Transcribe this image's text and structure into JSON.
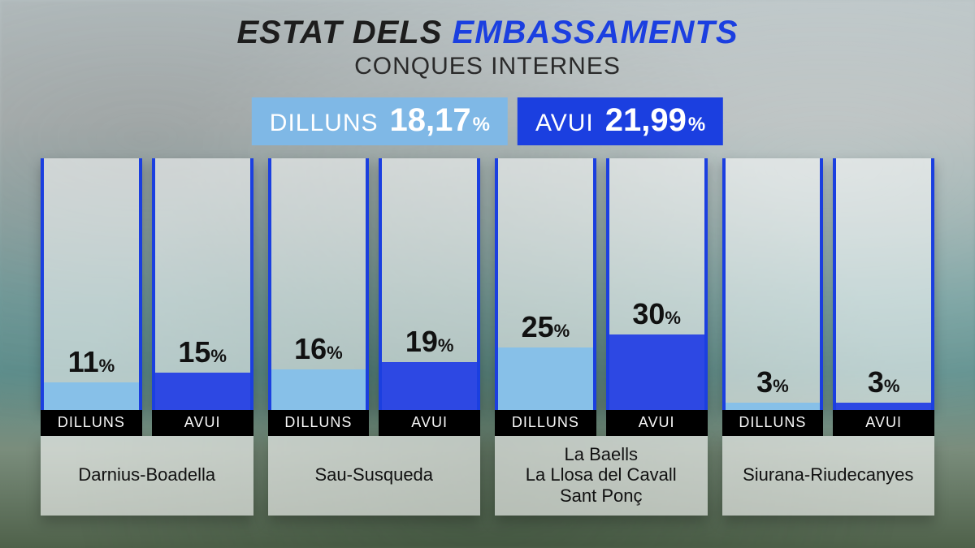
{
  "title": {
    "prefix": "ESTAT DELS ",
    "highlight": "EMBASSAMENTS"
  },
  "subtitle": "CONQUES INTERNES",
  "colors": {
    "light": "#87c0e8",
    "dark": "#2d48e3",
    "summary_light_bg": "#7fb8e6",
    "summary_dark_bg": "#1b3fe0",
    "border": "#1b3fe0",
    "panel_bg": "rgba(255,255,255,0.55)",
    "label_panel_bg": "rgba(255,255,255,0.6)",
    "tag_bg": "#000000",
    "tag_text": "#ffffff",
    "text": "#111111",
    "title_text": "#1d1d1d",
    "title_highlight": "#1b3fe0"
  },
  "summary": [
    {
      "name": "DILLUNS",
      "value": "18,17",
      "unit": "%",
      "variant": "light"
    },
    {
      "name": "AVUI",
      "value": "21,99",
      "unit": "%",
      "variant": "dark"
    }
  ],
  "series_tags": {
    "light": "DILLUNS",
    "dark": "AVUI"
  },
  "chart": {
    "y_max": 100,
    "bar_value_fontsize": 36,
    "group_label_fontsize": 22,
    "groups": [
      {
        "label_lines": [
          "Darnius-Boadella"
        ],
        "values": {
          "light": 11,
          "dark": 15
        }
      },
      {
        "label_lines": [
          "Sau-Susqueda"
        ],
        "values": {
          "light": 16,
          "dark": 19
        }
      },
      {
        "label_lines": [
          "La Baells",
          "La Llosa del Cavall",
          "Sant Ponç"
        ],
        "values": {
          "light": 25,
          "dark": 30
        }
      },
      {
        "label_lines": [
          "Siurana-Riudecanyes"
        ],
        "values": {
          "light": 3,
          "dark": 3
        }
      }
    ]
  }
}
